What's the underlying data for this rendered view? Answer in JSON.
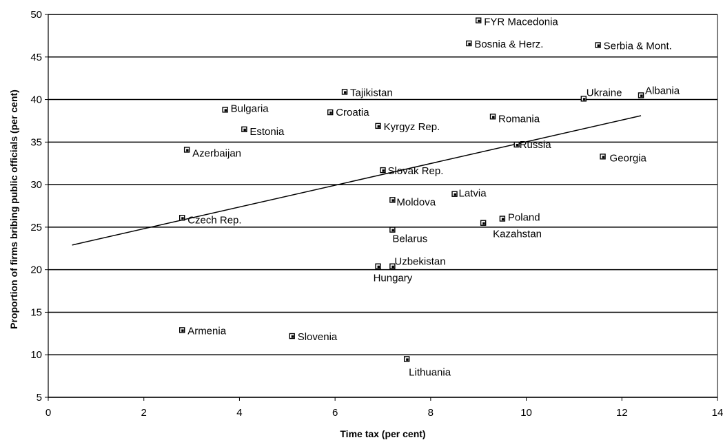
{
  "chart_data": {
    "type": "scatter",
    "title": "",
    "xlabel": "Time tax (per cent)",
    "ylabel": "Proportion of firms bribing public officials (per cent)",
    "xlim": [
      0,
      14
    ],
    "ylim": [
      5,
      50
    ],
    "x_ticks": [
      "0",
      "2",
      "4",
      "6",
      "8",
      "10",
      "12",
      "14"
    ],
    "y_ticks": [
      "5",
      "10",
      "15",
      "20",
      "25",
      "30",
      "35",
      "40",
      "45",
      "50"
    ],
    "grid": "horizontal",
    "points": [
      {
        "name": "FYR Macedonia",
        "x": 9.0,
        "y": 49.3
      },
      {
        "name": "Bosnia & Herz.",
        "x": 8.8,
        "y": 46.6
      },
      {
        "name": "Serbia & Mont.",
        "x": 11.5,
        "y": 46.4
      },
      {
        "name": "Tajikistan",
        "x": 6.2,
        "y": 40.9
      },
      {
        "name": "Ukraine",
        "x": 11.2,
        "y": 40.1
      },
      {
        "name": "Albania",
        "x": 12.4,
        "y": 40.5
      },
      {
        "name": "Bulgaria",
        "x": 3.7,
        "y": 38.8
      },
      {
        "name": "Croatia",
        "x": 5.9,
        "y": 38.5
      },
      {
        "name": "Romania",
        "x": 9.3,
        "y": 38.0
      },
      {
        "name": "Estonia",
        "x": 4.1,
        "y": 36.5
      },
      {
        "name": "Kyrgyz Rep.",
        "x": 6.9,
        "y": 36.9
      },
      {
        "name": "Russia",
        "x": 9.8,
        "y": 34.7
      },
      {
        "name": "Azerbaijan",
        "x": 2.9,
        "y": 34.1
      },
      {
        "name": "Georgia",
        "x": 11.6,
        "y": 33.3
      },
      {
        "name": "Slovak Rep.",
        "x": 7.0,
        "y": 31.7
      },
      {
        "name": "Latvia",
        "x": 8.5,
        "y": 28.9
      },
      {
        "name": "Moldova",
        "x": 7.2,
        "y": 28.2
      },
      {
        "name": "Czech Rep.",
        "x": 2.8,
        "y": 26.1
      },
      {
        "name": "Poland",
        "x": 9.5,
        "y": 26.0
      },
      {
        "name": "Kazahstan",
        "x": 9.1,
        "y": 25.5
      },
      {
        "name": "Belarus",
        "x": 7.2,
        "y": 24.7
      },
      {
        "name": "Uzbekistan",
        "x": 7.2,
        "y": 20.4
      },
      {
        "name": "Hungary",
        "x": 6.9,
        "y": 20.4
      },
      {
        "name": "Armenia",
        "x": 2.8,
        "y": 12.9
      },
      {
        "name": "Slovenia",
        "x": 5.1,
        "y": 12.2
      },
      {
        "name": "Lithuania",
        "x": 7.5,
        "y": 9.5
      }
    ],
    "trendline": {
      "x": [
        0.5,
        12.4
      ],
      "y": [
        22.9,
        38.1
      ]
    }
  }
}
